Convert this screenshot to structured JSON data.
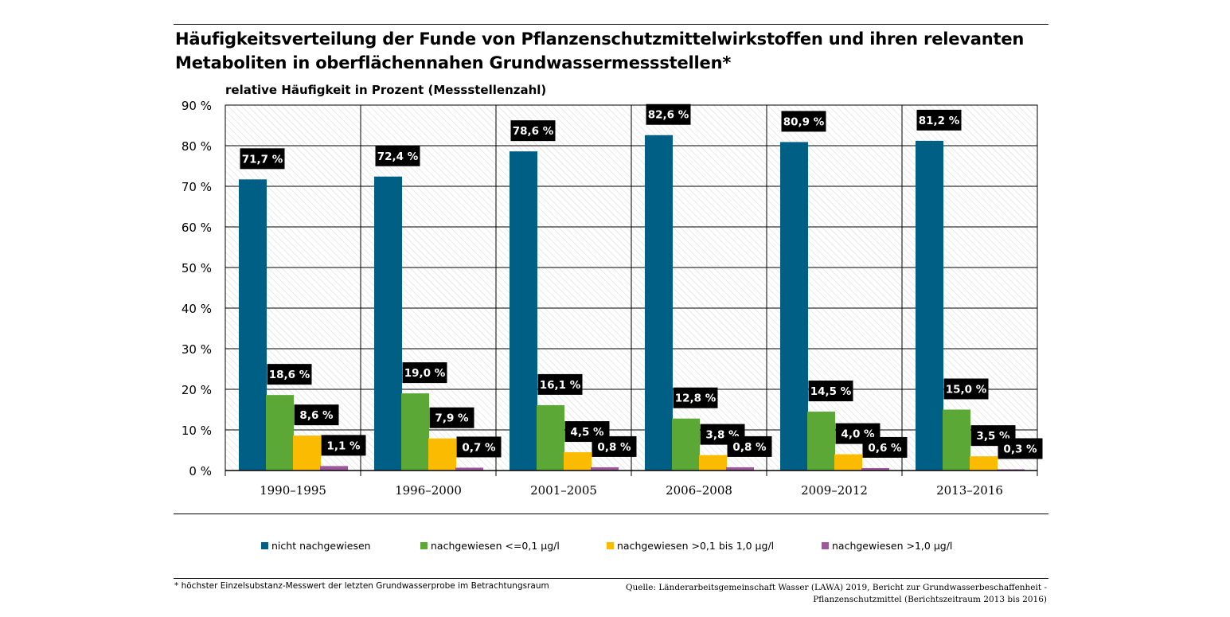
{
  "title": "Häufigkeitsverteilung der Funde von Pflanzenschutzmittelwirkstoffen und ihren relevanten Metaboliten in oberflächennahen Grundwassermessstellen*",
  "footnote": "* höchster Einzelsubstanz-Messwert der letzten Grundwasserprobe im Betrachtungsraum",
  "source": {
    "line1": "Quelle: Länderarbeitsgemeinschaft Wasser (LAWA) 2019, Bericht zur Grundwasserbeschaffenheit -",
    "line2": "Pflanzenschutzmittel (Berichtszeitraum 2013 bis 2016)"
  },
  "chart_data": {
    "type": "bar",
    "ylabel": "relative Häufigkeit in Prozent (Messstellenzahl)",
    "ylim": [
      0,
      90
    ],
    "yticks": [
      "0 %",
      "10 %",
      "20 %",
      "30 %",
      "40 %",
      "50 %",
      "60 %",
      "70 %",
      "80 %",
      "90 %"
    ],
    "grid": true,
    "legend_position": "bottom",
    "categories": [
      "1990–1995",
      "1996–2000",
      "2001–2005",
      "2006–2008",
      "2009–2012",
      "2013–2016"
    ],
    "series": [
      {
        "name": "nicht nachgewiesen",
        "color": "#005f85",
        "values": [
          71.7,
          72.4,
          78.6,
          82.6,
          80.9,
          81.2
        ],
        "labels": [
          "71,7 %",
          "72,4 %",
          "78,6 %",
          "82,6 %",
          "80,9 %",
          "81,2 %"
        ]
      },
      {
        "name": "nachgewiesen <=0,1 µg/l",
        "color": "#5ba836",
        "values": [
          18.6,
          19.0,
          16.1,
          12.8,
          14.5,
          15.0
        ],
        "labels": [
          "18,6 %",
          "19,0 %",
          "16,1 %",
          "12,8 %",
          "14,5 %",
          "15,0 %"
        ]
      },
      {
        "name": "nachgewiesen >0,1 bis 1,0 µg/l",
        "color": "#fabb00",
        "values": [
          8.6,
          7.9,
          4.5,
          3.8,
          4.0,
          3.5
        ],
        "labels": [
          "8,6 %",
          "7,9 %",
          "4,5 %",
          "3,8 %",
          "4,0 %",
          "3,5 %"
        ]
      },
      {
        "name": "nachgewiesen >1,0 µg/l",
        "color": "#9d579a",
        "values": [
          1.1,
          0.7,
          0.8,
          0.8,
          0.6,
          0.3
        ],
        "labels": [
          "1,1 %",
          "0,7 %",
          "0,8 %",
          "0,8 %",
          "0,6 %",
          "0,3 %"
        ]
      }
    ]
  }
}
